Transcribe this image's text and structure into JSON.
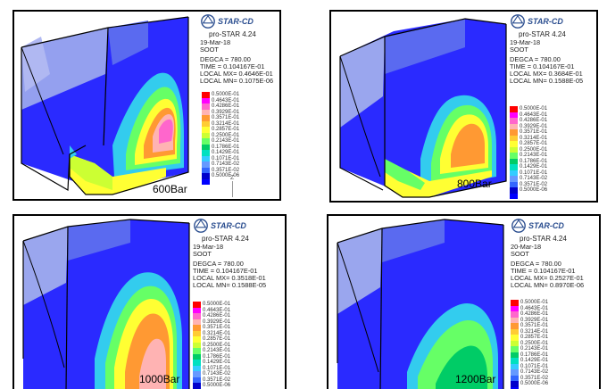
{
  "brand": "STAR-CD",
  "version": "pro-STAR 4.24",
  "colors": {
    "scale": [
      "#ff0000",
      "#ff00ff",
      "#ff66cc",
      "#ffb3b3",
      "#ff9933",
      "#ffcc33",
      "#ffff33",
      "#ccff33",
      "#66ff66",
      "#00cc66",
      "#00e0c0",
      "#33ccff",
      "#6699ff",
      "#3366ff",
      "#0000cc",
      "#0000ff"
    ],
    "background_field": "#2a2aff",
    "lavender": "#9aa6ee",
    "cyan": "#33ccee"
  },
  "axis_label": "Z",
  "panels": [
    {
      "id": "600",
      "date": "19-Mar-18",
      "variable": "SOOT",
      "degca": "DEGCA =   780.00",
      "time": "TIME = 0.104167E-01",
      "local_mx": "LOCAL MX= 0.4646E-01",
      "local_mn": "LOCAL MN= 0.1075E-06",
      "pressure": "600Bar",
      "ticks": [
        "0.5000E-01",
        "0.4643E-01",
        "0.4286E-01",
        "0.3929E-01",
        "0.3571E-01",
        "0.3214E-01",
        "0.2857E-01",
        "0.2500E-01",
        "0.2143E-01",
        "0.1786E-01",
        "0.1429E-01",
        "0.1071E-01",
        "0.7143E-02",
        "0.3571E-02",
        "0.5000E-06"
      ]
    },
    {
      "id": "800",
      "date": "19-Mar-18",
      "variable": "SOOT",
      "degca": "DEGCA =   780.00",
      "time": "TIME = 0.104167E-01",
      "local_mx": "LOCAL MX= 0.3684E-01",
      "local_mn": "LOCAL MN= 0.1588E-05",
      "pressure": "800Bar",
      "ticks": [
        "0.5000E-01",
        "0.4643E-01",
        "0.4286E-01",
        "0.3929E-01",
        "0.3571E-01",
        "0.3214E-01",
        "0.2857E-01",
        "0.2500E-01",
        "0.2143E-01",
        "0.1786E-01",
        "0.1429E-01",
        "0.1071E-01",
        "0.7143E-02",
        "0.3571E-02",
        "0.5000E-06"
      ]
    },
    {
      "id": "1000",
      "date": "19-Mar-18",
      "variable": "SOOT",
      "degca": "DEGCA =   780.00",
      "time": "TIME = 0.104167E-01",
      "local_mx": "LOCAL MX= 0.3518E-01",
      "local_mn": "LOCAL MN= 0.1588E-05",
      "pressure": "1000Bar",
      "ticks": [
        "0.5000E-01",
        "0.4643E-01",
        "0.4286E-01",
        "0.3929E-01",
        "0.3571E-01",
        "0.3214E-01",
        "0.2857E-01",
        "0.2500E-01",
        "0.2143E-01",
        "0.1786E-01",
        "0.1429E-01",
        "0.1071E-01",
        "0.7143E-02",
        "0.3571E-02",
        "0.5000E-06"
      ]
    },
    {
      "id": "1200",
      "date": "20-Mar-18",
      "variable": "SOOT",
      "degca": "DEGCA =   780.00",
      "time": "TIME = 0.104167E-01",
      "local_mx": "LOCAL MX= 0.2527E-01",
      "local_mn": "LOCAL MN= 0.8970E-06",
      "pressure": "1200Bar",
      "ticks": [
        "0.5000E-01",
        "0.4643E-01",
        "0.4286E-01",
        "0.3929E-01",
        "0.3571E-01",
        "0.3214E-01",
        "0.2857E-01",
        "0.2500E-01",
        "0.2143E-01",
        "0.1786E-01",
        "0.1429E-01",
        "0.1071E-01",
        "0.7143E-02",
        "0.3571E-02",
        "0.5000E-06"
      ]
    }
  ]
}
